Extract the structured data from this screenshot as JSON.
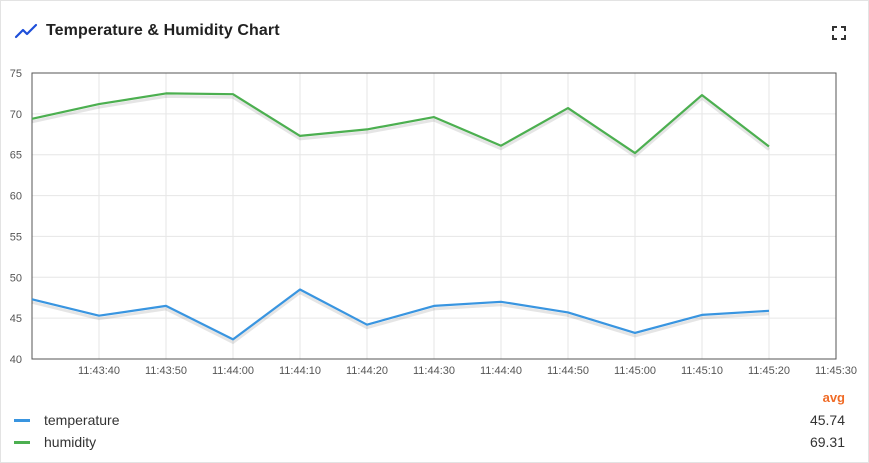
{
  "header": {
    "title": "Temperature & Humidity Chart",
    "title_icon": "trending-line-icon",
    "fullscreen_icon": "fullscreen-icon"
  },
  "colors": {
    "accent": "#1e4fd9",
    "temperature": "#3995e0",
    "humidity": "#4caf50",
    "avg": "#f06b26"
  },
  "legend": {
    "avg_label": "avg",
    "rows": [
      {
        "name": "temperature",
        "avg": "45.74"
      },
      {
        "name": "humidity",
        "avg": "69.31"
      }
    ]
  },
  "chart_data": {
    "type": "line",
    "ylim": [
      40,
      75
    ],
    "yticks": [
      40,
      45,
      50,
      55,
      60,
      65,
      70,
      75
    ],
    "xlim": [
      "11:43:30",
      "11:45:30"
    ],
    "xticks": [
      "11:43:40",
      "11:43:50",
      "11:44:00",
      "11:44:10",
      "11:44:20",
      "11:44:30",
      "11:44:40",
      "11:44:50",
      "11:45:00",
      "11:45:10",
      "11:45:20",
      "11:45:30"
    ],
    "x": [
      "11:43:30",
      "11:43:40",
      "11:43:50",
      "11:44:00",
      "11:44:10",
      "11:44:20",
      "11:44:30",
      "11:44:40",
      "11:44:50",
      "11:45:00",
      "11:45:10",
      "11:45:20"
    ],
    "grid": true,
    "series": [
      {
        "name": "temperature",
        "values": [
          47.3,
          45.3,
          46.5,
          42.4,
          48.5,
          44.2,
          46.5,
          47.0,
          45.7,
          43.2,
          45.4,
          45.9
        ]
      },
      {
        "name": "humidity",
        "values": [
          69.4,
          71.2,
          72.5,
          72.4,
          67.3,
          68.1,
          69.6,
          66.1,
          70.7,
          65.2,
          72.3,
          66.0
        ]
      }
    ]
  }
}
